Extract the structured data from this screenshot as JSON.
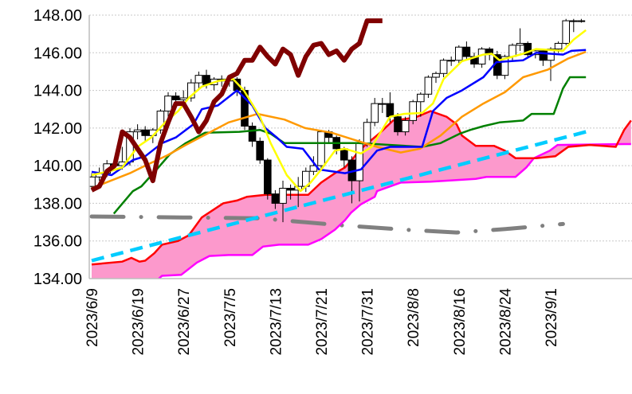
{
  "chart_data": {
    "type": "candlestick-ichimoku",
    "title": "",
    "ylim": [
      134,
      148
    ],
    "yticks": [
      "134.00",
      "136.00",
      "138.00",
      "140.00",
      "142.00",
      "144.00",
      "146.00",
      "148.00"
    ],
    "ytick_values": [
      134,
      136,
      138,
      140,
      142,
      144,
      146,
      148
    ],
    "grid": true,
    "x_tick_labels": [
      {
        "index": 0,
        "label": "2023/6/9"
      },
      {
        "index": 6,
        "label": "2023/6/19"
      },
      {
        "index": 12,
        "label": "2023/6/27"
      },
      {
        "index": 18,
        "label": "2023/7/5"
      },
      {
        "index": 24,
        "label": "2023/7/13"
      },
      {
        "index": 30,
        "label": "2023/7/21"
      },
      {
        "index": 36,
        "label": "2023/7/31"
      },
      {
        "index": 42,
        "label": "2023/8/8"
      },
      {
        "index": 48,
        "label": "2023/8/16"
      },
      {
        "index": 54,
        "label": "2023/8/24"
      },
      {
        "index": 60,
        "label": "2023/9/1"
      }
    ],
    "x_slots": 71,
    "candles_ohlc": [
      [
        138.9,
        139.6,
        138.7,
        139.4
      ],
      [
        139.4,
        139.9,
        139.2,
        139.6
      ],
      [
        139.6,
        140.3,
        139.4,
        140.1
      ],
      [
        140.1,
        140.3,
        139.8,
        140.0
      ],
      [
        140.0,
        141.0,
        139.8,
        140.2
      ],
      [
        140.2,
        142.0,
        140.0,
        141.8
      ],
      [
        141.8,
        142.2,
        141.4,
        141.9
      ],
      [
        141.9,
        142.1,
        141.3,
        141.6
      ],
      [
        141.6,
        142.0,
        141.2,
        141.9
      ],
      [
        141.9,
        143.0,
        141.7,
        142.9
      ],
      [
        142.9,
        143.9,
        142.6,
        143.7
      ],
      [
        143.7,
        143.9,
        143.2,
        143.5
      ],
      [
        143.5,
        144.0,
        143.3,
        143.6
      ],
      [
        143.6,
        144.6,
        143.4,
        144.4
      ],
      [
        144.4,
        145.0,
        144.1,
        144.8
      ],
      [
        144.8,
        145.1,
        144.1,
        144.3
      ],
      [
        144.3,
        144.7,
        144.0,
        144.6
      ],
      [
        144.6,
        144.8,
        144.2,
        144.5
      ],
      [
        144.5,
        144.8,
        144.2,
        144.6
      ],
      [
        144.6,
        144.7,
        143.7,
        144.0
      ],
      [
        144.0,
        144.2,
        141.9,
        142.1
      ],
      [
        142.1,
        142.3,
        141.0,
        141.3
      ],
      [
        141.3,
        141.5,
        140.1,
        140.3
      ],
      [
        140.3,
        140.4,
        138.2,
        138.5
      ],
      [
        138.5,
        138.7,
        137.7,
        138.0
      ],
      [
        138.0,
        139.2,
        137.0,
        138.8
      ],
      [
        138.8,
        139.0,
        138.2,
        138.7
      ],
      [
        138.7,
        139.4,
        137.8,
        138.9
      ],
      [
        138.9,
        139.9,
        138.6,
        139.7
      ],
      [
        139.7,
        140.5,
        139.5,
        140.0
      ],
      [
        140.0,
        141.9,
        139.8,
        141.8
      ],
      [
        141.8,
        141.9,
        141.2,
        141.5
      ],
      [
        141.5,
        141.6,
        140.6,
        140.9
      ],
      [
        140.9,
        141.0,
        139.9,
        140.3
      ],
      [
        140.3,
        140.5,
        138.0,
        139.2
      ],
      [
        139.2,
        141.4,
        138.1,
        141.2
      ],
      [
        141.2,
        142.5,
        141.0,
        142.3
      ],
      [
        142.3,
        143.6,
        142.1,
        143.3
      ],
      [
        143.3,
        143.6,
        142.8,
        143.3
      ],
      [
        143.3,
        143.9,
        142.3,
        142.6
      ],
      [
        142.6,
        142.8,
        141.6,
        141.8
      ],
      [
        141.8,
        142.6,
        141.6,
        142.4
      ],
      [
        142.4,
        143.5,
        142.2,
        143.4
      ],
      [
        143.4,
        143.9,
        142.6,
        143.8
      ],
      [
        143.8,
        144.8,
        143.6,
        144.7
      ],
      [
        144.7,
        145.0,
        144.4,
        144.9
      ],
      [
        144.9,
        145.7,
        144.7,
        145.6
      ],
      [
        145.6,
        145.8,
        145.3,
        145.6
      ],
      [
        145.6,
        146.4,
        145.4,
        146.3
      ],
      [
        146.3,
        146.6,
        145.6,
        145.8
      ],
      [
        145.8,
        146.0,
        145.2,
        145.4
      ],
      [
        145.4,
        146.3,
        145.2,
        146.2
      ],
      [
        146.2,
        146.3,
        145.6,
        145.9
      ],
      [
        145.9,
        146.1,
        144.6,
        144.8
      ],
      [
        144.8,
        145.9,
        144.6,
        145.8
      ],
      [
        145.8,
        146.5,
        145.6,
        146.4
      ],
      [
        146.4,
        147.3,
        146.1,
        146.5
      ],
      [
        146.5,
        146.6,
        145.7,
        145.9
      ],
      [
        145.9,
        146.2,
        145.7,
        146.1
      ],
      [
        146.1,
        146.2,
        145.3,
        145.6
      ],
      [
        145.6,
        146.3,
        144.5,
        146.2
      ],
      [
        146.2,
        146.6,
        146.0,
        146.5
      ],
      [
        146.5,
        147.8,
        146.4,
        147.7
      ],
      [
        147.7,
        147.8,
        147.1,
        147.7
      ],
      [
        147.7,
        147.8,
        147.6,
        147.7
      ]
    ],
    "series": [
      {
        "name": "senkou-span-a",
        "color": "#ff0000",
        "points": [
          [
            0,
            134.75
          ],
          [
            4,
            134.9
          ],
          [
            5.2,
            135.1
          ],
          [
            6.25,
            134.9
          ],
          [
            7,
            134.95
          ],
          [
            8.2,
            135.35
          ],
          [
            9.2,
            135.8
          ],
          [
            11.3,
            136.0
          ],
          [
            12.7,
            136.3
          ],
          [
            14.4,
            137.25
          ],
          [
            17.2,
            138.0
          ],
          [
            19,
            138.15
          ],
          [
            20.3,
            138.35
          ],
          [
            22.7,
            138.45
          ],
          [
            28.3,
            138.45
          ],
          [
            30,
            139.1
          ],
          [
            31.8,
            139.6
          ],
          [
            33.1,
            139.9
          ],
          [
            34.2,
            140.4
          ],
          [
            35.2,
            140.9
          ],
          [
            37.7,
            141.75
          ],
          [
            39.4,
            142.4
          ],
          [
            42.2,
            142.55
          ],
          [
            44.3,
            142.9
          ],
          [
            46.4,
            142.6
          ],
          [
            47.7,
            142.2
          ],
          [
            48.4,
            141.6
          ],
          [
            50.2,
            141.05
          ],
          [
            52.6,
            141.05
          ],
          [
            54,
            140.8
          ],
          [
            55.4,
            140.4
          ],
          [
            58.1,
            140.4
          ],
          [
            60.6,
            140.5
          ],
          [
            62.3,
            141.0
          ],
          [
            65.1,
            141.1
          ],
          [
            68.5,
            141.0
          ],
          [
            69.6,
            141.9
          ],
          [
            70.5,
            142.4
          ]
        ]
      },
      {
        "name": "senkou-span-b",
        "color": "#ff00ff",
        "points": [
          [
            0,
            133.0
          ],
          [
            7.5,
            133.3
          ],
          [
            8.5,
            133.9
          ],
          [
            9.2,
            134.15
          ],
          [
            11.7,
            134.2
          ],
          [
            13.75,
            134.85
          ],
          [
            15.4,
            135.2
          ],
          [
            17.9,
            135.25
          ],
          [
            21,
            135.25
          ],
          [
            22.4,
            135.7
          ],
          [
            24.5,
            135.8
          ],
          [
            28.3,
            135.8
          ],
          [
            30,
            136.1
          ],
          [
            31.8,
            136.6
          ],
          [
            33.1,
            137.1
          ],
          [
            33.9,
            137.5
          ],
          [
            35.2,
            137.95
          ],
          [
            37,
            138.35
          ],
          [
            37.3,
            138.65
          ],
          [
            40.4,
            139.1
          ],
          [
            44.3,
            139.15
          ],
          [
            50.2,
            139.3
          ],
          [
            51.6,
            139.4
          ],
          [
            55.4,
            139.4
          ],
          [
            56.8,
            139.9
          ],
          [
            57.8,
            140.4
          ],
          [
            59.9,
            140.8
          ],
          [
            60.9,
            141.1
          ],
          [
            69.6,
            141.15
          ],
          [
            70.5,
            141.15
          ]
        ]
      },
      {
        "name": "tenkan-sen",
        "color": "#0000ff",
        "points": [
          [
            0,
            139.67
          ],
          [
            2.6,
            139.5
          ],
          [
            5.4,
            140.3
          ],
          [
            7,
            140.5
          ],
          [
            9.2,
            141.2
          ],
          [
            11,
            141.5
          ],
          [
            13.3,
            142.2
          ],
          [
            14.4,
            143.0
          ],
          [
            16.5,
            143.2
          ],
          [
            19,
            144.0
          ],
          [
            21,
            143.2
          ],
          [
            22.7,
            142.0
          ],
          [
            24.2,
            141.5
          ],
          [
            25.5,
            141.0
          ],
          [
            27.6,
            140.9
          ],
          [
            29.7,
            139.8
          ],
          [
            33.1,
            139.6
          ],
          [
            35.2,
            139.8
          ],
          [
            37.3,
            140.8
          ],
          [
            39,
            141.0
          ],
          [
            43.2,
            141.0
          ],
          [
            44.6,
            142.9
          ],
          [
            46.4,
            143.6
          ],
          [
            48.4,
            144.0
          ],
          [
            51.2,
            144.7
          ],
          [
            52.9,
            145.5
          ],
          [
            56.4,
            145.6
          ],
          [
            58.1,
            146.0
          ],
          [
            61.6,
            145.9
          ],
          [
            62.7,
            146.1
          ],
          [
            64.6,
            146.15
          ]
        ]
      },
      {
        "name": "kijun-sen",
        "color": "#008000",
        "points": [
          [
            2.9,
            137.45
          ],
          [
            5.4,
            138.65
          ],
          [
            6.5,
            138.9
          ],
          [
            8.5,
            139.8
          ],
          [
            10.2,
            140.6
          ],
          [
            12.3,
            141.2
          ],
          [
            14.8,
            141.75
          ],
          [
            19.3,
            141.8
          ],
          [
            22,
            141.9
          ],
          [
            23.4,
            141.7
          ],
          [
            25.2,
            141.2
          ],
          [
            34.9,
            141.2
          ],
          [
            43.2,
            141.0
          ],
          [
            45.6,
            141.2
          ],
          [
            48.1,
            141.7
          ],
          [
            49.5,
            141.9
          ],
          [
            51.2,
            142.1
          ],
          [
            53.3,
            142.3
          ],
          [
            56.4,
            142.4
          ],
          [
            57.5,
            142.75
          ],
          [
            60.4,
            142.75
          ],
          [
            61.6,
            144.1
          ],
          [
            62.5,
            144.7
          ],
          [
            64.6,
            144.7
          ]
        ]
      },
      {
        "name": "moving-average-short",
        "color": "#ffff00",
        "points": [
          [
            0,
            139.5
          ],
          [
            2.3,
            139.7
          ],
          [
            4,
            139.9
          ],
          [
            6,
            141.0
          ],
          [
            7.8,
            141.5
          ],
          [
            9.6,
            142.3
          ],
          [
            11.3,
            142.9
          ],
          [
            12.7,
            143.6
          ],
          [
            14.4,
            144.2
          ],
          [
            16.5,
            144.5
          ],
          [
            18.5,
            144.6
          ],
          [
            19.9,
            144.0
          ],
          [
            22,
            142.6
          ],
          [
            23.4,
            141.2
          ],
          [
            25.5,
            139.5
          ],
          [
            27.3,
            138.65
          ],
          [
            28.6,
            139.1
          ],
          [
            30,
            139.8
          ],
          [
            31.8,
            140.8
          ],
          [
            33.1,
            140.9
          ],
          [
            35.2,
            140.65
          ],
          [
            36.6,
            141.0
          ],
          [
            39,
            142.6
          ],
          [
            40.8,
            142.75
          ],
          [
            43.2,
            142.8
          ],
          [
            44.6,
            143.3
          ],
          [
            46,
            144.6
          ],
          [
            48.4,
            145.55
          ],
          [
            51.2,
            145.9
          ],
          [
            52.3,
            145.95
          ],
          [
            53.3,
            145.6
          ],
          [
            56.4,
            145.95
          ],
          [
            58.1,
            146.2
          ],
          [
            61.6,
            146.1
          ],
          [
            63,
            146.7
          ],
          [
            64.6,
            147.2
          ]
        ]
      },
      {
        "name": "moving-average-long",
        "color": "#ff9900",
        "points": [
          [
            0,
            138.8
          ],
          [
            5,
            139.6
          ],
          [
            7,
            140.0
          ],
          [
            9.9,
            140.55
          ],
          [
            12.3,
            141.1
          ],
          [
            15.1,
            141.7
          ],
          [
            17.9,
            142.3
          ],
          [
            21.7,
            142.75
          ],
          [
            25.2,
            142.45
          ],
          [
            27.9,
            142.0
          ],
          [
            31.4,
            141.75
          ],
          [
            34.9,
            141.3
          ],
          [
            37.3,
            141.0
          ],
          [
            40.4,
            140.7
          ],
          [
            42.9,
            140.9
          ],
          [
            45.6,
            141.6
          ],
          [
            48.4,
            142.6
          ],
          [
            51.2,
            143.3
          ],
          [
            54,
            143.9
          ],
          [
            56.4,
            144.7
          ],
          [
            59.6,
            145.1
          ],
          [
            62.3,
            145.7
          ],
          [
            64.6,
            146.05
          ]
        ]
      },
      {
        "name": "chikou-span",
        "color": "#800000",
        "shift": 26
      },
      {
        "name": "support-trendline",
        "color": "#00ccff",
        "points": [
          [
            0,
            134.95
          ],
          [
            64.6,
            141.8
          ]
        ]
      },
      {
        "name": "resistance-trendline",
        "color": "#808080",
        "points": [
          [
            0,
            137.3
          ],
          [
            12,
            137.25
          ],
          [
            22,
            137.2
          ],
          [
            32,
            136.85
          ],
          [
            40.8,
            136.6
          ],
          [
            47.7,
            136.45
          ],
          [
            54.7,
            136.65
          ],
          [
            61.6,
            136.9
          ]
        ]
      }
    ]
  }
}
